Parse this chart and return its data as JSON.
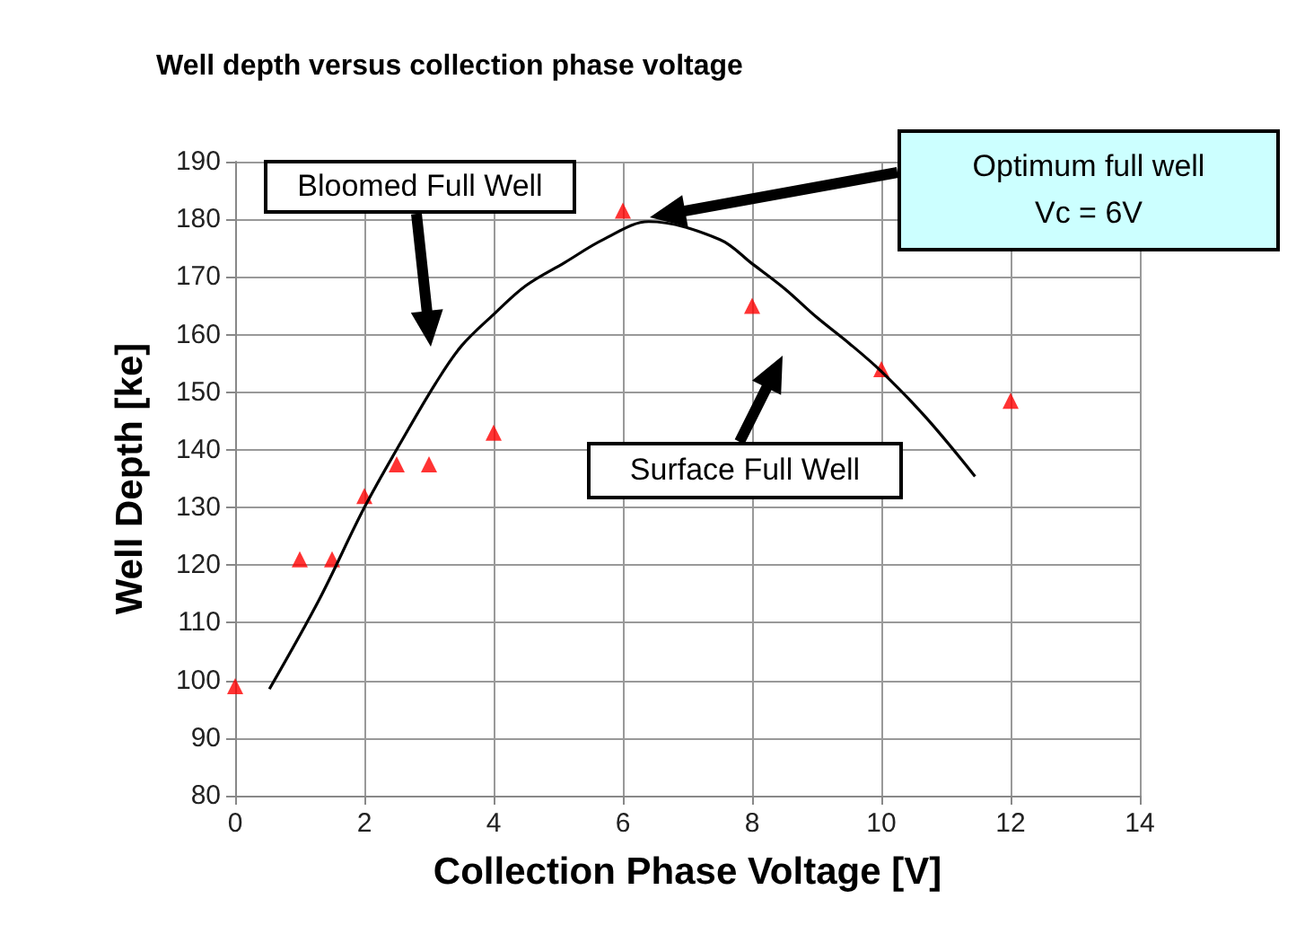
{
  "chart_data": {
    "type": "scatter",
    "title": "Well depth versus collection phase voltage",
    "xlabel": "Collection Phase Voltage [V]",
    "ylabel": "Well Depth [ke]",
    "xlim": [
      0,
      14
    ],
    "xticks": [
      0,
      2,
      4,
      6,
      8,
      10,
      12,
      14
    ],
    "ylim": [
      80,
      190
    ],
    "yticks": [
      80,
      90,
      100,
      110,
      120,
      130,
      140,
      150,
      160,
      170,
      180,
      190
    ],
    "grid": true,
    "marker": "triangle",
    "series": [
      {
        "color": "#ff0000",
        "x": [
          0,
          1,
          1.5,
          2,
          2.5,
          3,
          4,
          6,
          8,
          10,
          12
        ],
        "values": [
          99,
          121,
          121,
          132,
          137.5,
          137.5,
          143,
          181.5,
          165,
          154,
          148.5
        ]
      },
      {
        "type": "line",
        "color": "#000000",
        "marker": "none",
        "x": [
          0.53,
          1.3,
          2,
          2.6,
          3.1,
          3.5,
          4,
          4.5,
          5.1,
          5.7,
          6.4,
          7.5,
          8,
          8.5,
          9,
          9.5,
          10,
          10.7,
          11.45
        ],
        "values": [
          98.5,
          114,
          130,
          142,
          151.5,
          158,
          163.5,
          168.5,
          172.5,
          176.5,
          179.6,
          176.5,
          172.3,
          168,
          163,
          158.5,
          153.6,
          145.5,
          135.4
        ]
      }
    ],
    "annotations": [
      "Bloomed Full Well",
      "Optimum full well\nVc = 6V",
      "Surface Full Well"
    ]
  }
}
